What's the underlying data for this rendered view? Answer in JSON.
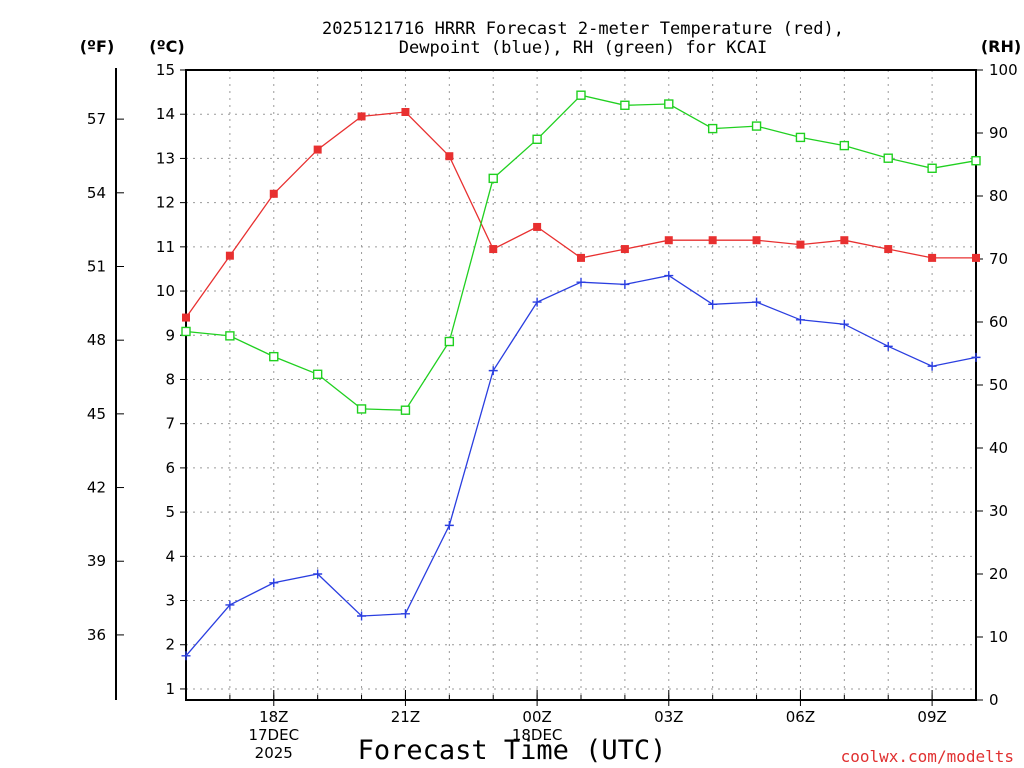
{
  "chart_data": {
    "type": "line",
    "title_line1": "2025121716 HRRR Forecast 2-meter Temperature (red),",
    "title_line2": "Dewpoint (blue), RH (green) for KCAI",
    "left_unit_f": "(ºF)",
    "left_unit_c": "(ºC)",
    "right_unit": "(RH)",
    "xlabel": "Forecast Time (UTC)",
    "credit": "coolwx.com/modelts",
    "celsius_range": [
      0.75,
      15
    ],
    "celsius_ticks": [
      "1",
      "2",
      "3",
      "4",
      "5",
      "6",
      "7",
      "8",
      "9",
      "10",
      "11",
      "12",
      "13",
      "14",
      "15"
    ],
    "fahrenheit_ticks": [
      "36",
      "39",
      "42",
      "45",
      "48",
      "51",
      "54",
      "57"
    ],
    "rh_range": [
      0,
      100
    ],
    "rh_ticks": [
      "0",
      "10",
      "20",
      "30",
      "40",
      "50",
      "60",
      "70",
      "80",
      "90",
      "100"
    ],
    "x_hours": [
      16,
      17,
      18,
      19,
      20,
      21,
      22,
      23,
      24,
      25,
      26,
      27,
      28,
      29,
      30,
      31,
      32,
      33,
      34
    ],
    "x_ticks": [
      {
        "hour": 18,
        "lines": [
          "18Z",
          "17DEC",
          "2025"
        ]
      },
      {
        "hour": 21,
        "lines": [
          "21Z"
        ]
      },
      {
        "hour": 24,
        "lines": [
          "00Z",
          "18DEC"
        ]
      },
      {
        "hour": 27,
        "lines": [
          "03Z"
        ]
      },
      {
        "hour": 30,
        "lines": [
          "06Z"
        ]
      },
      {
        "hour": 33,
        "lines": [
          "09Z"
        ]
      }
    ],
    "series": [
      {
        "name": "2-meter Temperature",
        "axis": "celsius",
        "color": "#e83030",
        "marker": "filled-square",
        "values": [
          9.4,
          10.8,
          12.2,
          13.2,
          13.95,
          14.05,
          13.05,
          10.95,
          11.45,
          10.75,
          10.95,
          11.15,
          11.15,
          11.15,
          11.05,
          11.15,
          10.95,
          10.75,
          10.75
        ]
      },
      {
        "name": "Dewpoint",
        "axis": "celsius",
        "color": "#2a3ee0",
        "marker": "plus",
        "values": [
          1.75,
          2.9,
          3.4,
          3.6,
          2.65,
          2.7,
          4.7,
          8.2,
          9.75,
          10.2,
          10.15,
          10.35,
          9.7,
          9.75,
          9.35,
          9.25,
          8.75,
          8.3,
          8.5
        ]
      },
      {
        "name": "RH",
        "axis": "rh",
        "color": "#20d020",
        "marker": "open-square",
        "values": [
          58.5,
          57.8,
          54.5,
          51.7,
          46.2,
          46.0,
          56.9,
          82.8,
          89.0,
          96.0,
          94.4,
          94.6,
          90.7,
          91.1,
          89.3,
          88.0,
          86.0,
          84.4,
          85.6
        ]
      }
    ]
  }
}
